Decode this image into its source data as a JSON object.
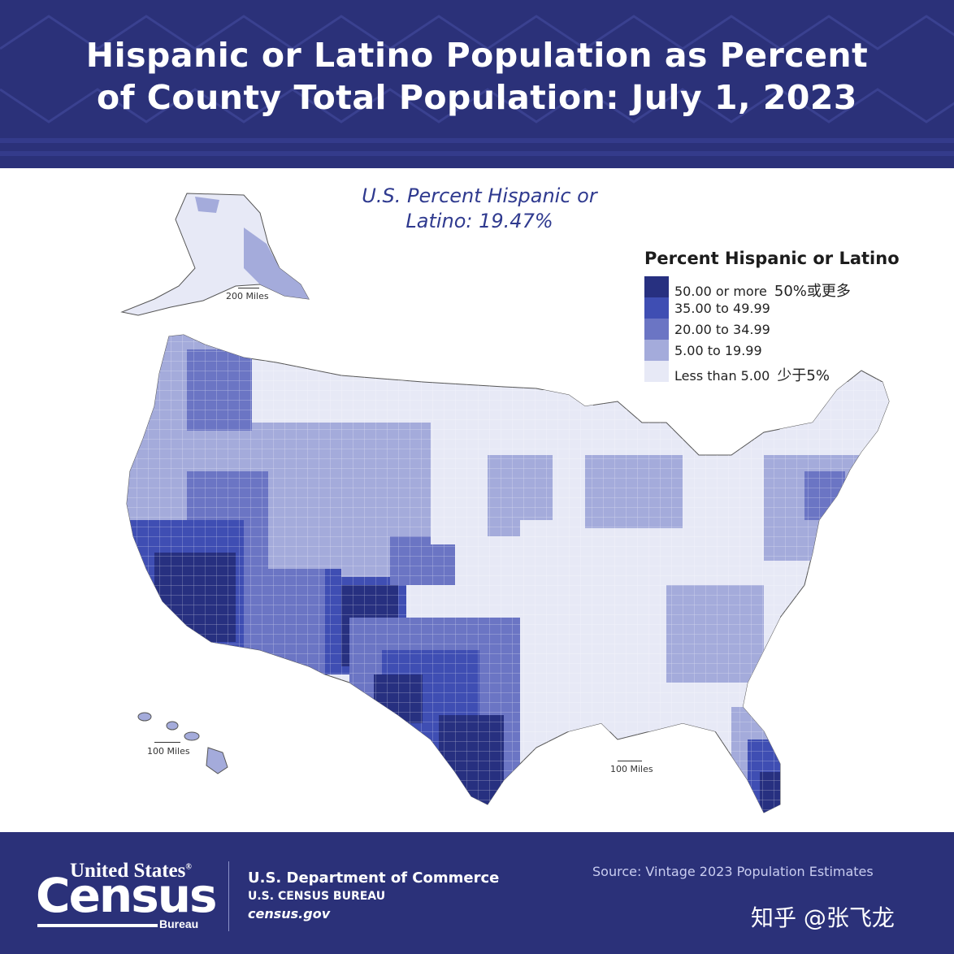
{
  "header": {
    "title_line1": "Hispanic or Latino Population as Percent",
    "title_line2": "of County Total Population: July 1, 2023"
  },
  "map": {
    "subtitle_line1": "U.S. Percent Hispanic or",
    "subtitle_line2": "Latino: 19.47%",
    "scale_alaska": "200 Miles",
    "scale_hawaii": "100 Miles",
    "scale_conus": "100 Miles"
  },
  "legend": {
    "title": "Percent Hispanic or Latino",
    "items": [
      {
        "label": "50.00 or more",
        "note": "50%或更多",
        "color": "#273080"
      },
      {
        "label": "35.00 to 49.99",
        "note": "",
        "color": "#3f4eb3"
      },
      {
        "label": "20.00 to 34.99",
        "note": "",
        "color": "#6b75c4"
      },
      {
        "label": "5.00 to 19.99",
        "note": "",
        "color": "#a4abdb"
      },
      {
        "label": "Less than 5.00",
        "note": "少于5%",
        "color": "#e7e9f6"
      }
    ]
  },
  "footer": {
    "logo_top": "United States",
    "logo_reg": "®",
    "logo_main": "Census",
    "logo_sub": "Bureau",
    "dept_line1": "U.S. Department of Commerce",
    "dept_line2": "U.S. CENSUS BUREAU",
    "dept_line3": "census.gov",
    "source": "Source: Vintage 2023 Population Estimates",
    "watermark": "知乎 @张飞龙"
  },
  "colors": {
    "banner": "#2b3179",
    "c50": "#273080",
    "c35": "#3f4eb3",
    "c20": "#6b75c4",
    "c5": "#a4abdb",
    "c0": "#e7e9f6"
  }
}
